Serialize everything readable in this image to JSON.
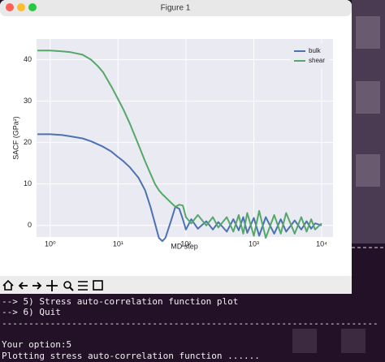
{
  "window": {
    "title": "Figure 1"
  },
  "chart_data": {
    "type": "line",
    "xlabel": "MD step",
    "ylabel": "SACF (GPa²)",
    "log_x": true,
    "grid": true,
    "legend": "upper right",
    "xlim": [
      0.63,
      14700
    ],
    "ylim": [
      -2.8,
      45
    ],
    "xticks": [
      {
        "value": 1,
        "label": "10⁰"
      },
      {
        "value": 10,
        "label": "10¹"
      },
      {
        "value": 100,
        "label": "10²"
      },
      {
        "value": 1000,
        "label": "10³"
      },
      {
        "value": 10000,
        "label": "10⁴"
      }
    ],
    "yticks": [
      0,
      10,
      20,
      30,
      40
    ],
    "x": [
      0.65,
      1,
      1.5,
      2,
      3,
      4,
      5,
      6,
      8,
      10,
      12,
      15,
      20,
      25,
      30,
      35,
      40,
      45,
      50,
      60,
      70,
      80,
      90,
      100,
      120,
      150,
      200,
      250,
      300,
      400,
      500,
      600,
      700,
      800,
      1000,
      1200,
      1500,
      2000,
      2500,
      3000,
      4000,
      5000,
      6000,
      7000,
      8000,
      10000
    ],
    "series": [
      {
        "name": "bulk",
        "color": "#4c72b0",
        "values": [
          22,
          22,
          21.8,
          21.5,
          21,
          20.3,
          19.6,
          19,
          17.8,
          16.5,
          15.5,
          14,
          11.5,
          8.5,
          4.5,
          0.5,
          -3,
          -3.8,
          -3,
          1,
          4.5,
          4,
          1.5,
          -1,
          1.5,
          -0.8,
          1,
          -1,
          0.8,
          -1.5,
          1.5,
          -1.2,
          2,
          -1.8,
          1.8,
          -2.5,
          2,
          -2,
          1.5,
          -1.5,
          1.2,
          -1,
          1,
          -0.8,
          0.5,
          0
        ]
      },
      {
        "name": "shear",
        "color": "#55a868",
        "values": [
          42.2,
          42.2,
          42,
          41.8,
          41.2,
          40,
          38.5,
          37,
          33.5,
          30.5,
          28,
          24.5,
          19.5,
          15.5,
          12.5,
          10,
          8.5,
          7.5,
          6.8,
          5.5,
          4.5,
          5,
          4.8,
          2,
          0.5,
          2.5,
          0,
          2,
          -0.5,
          2,
          -1.5,
          2.5,
          -2,
          3,
          -2.5,
          3.5,
          -3,
          2.5,
          -2,
          3,
          -2,
          2,
          -1.5,
          1.5,
          -1,
          0.5
        ]
      }
    ]
  },
  "terminal": {
    "lines": [
      "-->      5) Stress auto-correlation function plot",
      "-->      6) Quit",
      "----------------------------------------------------------------------",
      "Your option:5",
      "Plotting stress auto-correlation function ......"
    ]
  }
}
